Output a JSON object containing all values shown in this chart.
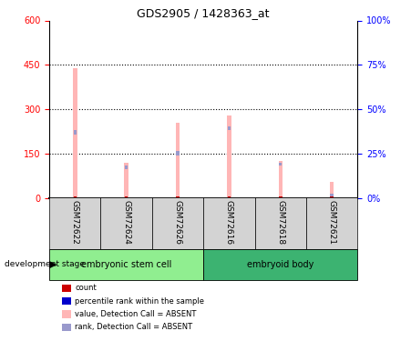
{
  "title": "GDS2905 / 1428363_at",
  "samples": [
    "GSM72622",
    "GSM72624",
    "GSM72626",
    "GSM72616",
    "GSM72618",
    "GSM72621"
  ],
  "value_absent": [
    440,
    120,
    255,
    280,
    125,
    55
  ],
  "rank_absent": [
    230,
    108,
    158,
    243,
    120,
    15
  ],
  "rank_absent_top_height": [
    15,
    12,
    15,
    15,
    12,
    15
  ],
  "left_ylim": [
    0,
    600
  ],
  "left_yticks": [
    0,
    150,
    300,
    450,
    600
  ],
  "right_ylim": [
    0,
    100
  ],
  "right_yticks": [
    0,
    25,
    50,
    75,
    100
  ],
  "value_absent_color": "#ffb6b6",
  "rank_absent_color": "#9999cc",
  "count_color": "#cc0000",
  "label_area_color": "#d3d3d3",
  "group1_color": "#90ee90",
  "group2_color": "#3cb371",
  "group1_name": "embryonic stem cell",
  "group2_name": "embryoid body",
  "xlabel_label": "development stage",
  "legend_items": [
    {
      "label": "count",
      "color": "#cc0000"
    },
    {
      "label": "percentile rank within the sample",
      "color": "#0000cc"
    },
    {
      "label": "value, Detection Call = ABSENT",
      "color": "#ffb6b6"
    },
    {
      "label": "rank, Detection Call = ABSENT",
      "color": "#9999cc"
    }
  ]
}
